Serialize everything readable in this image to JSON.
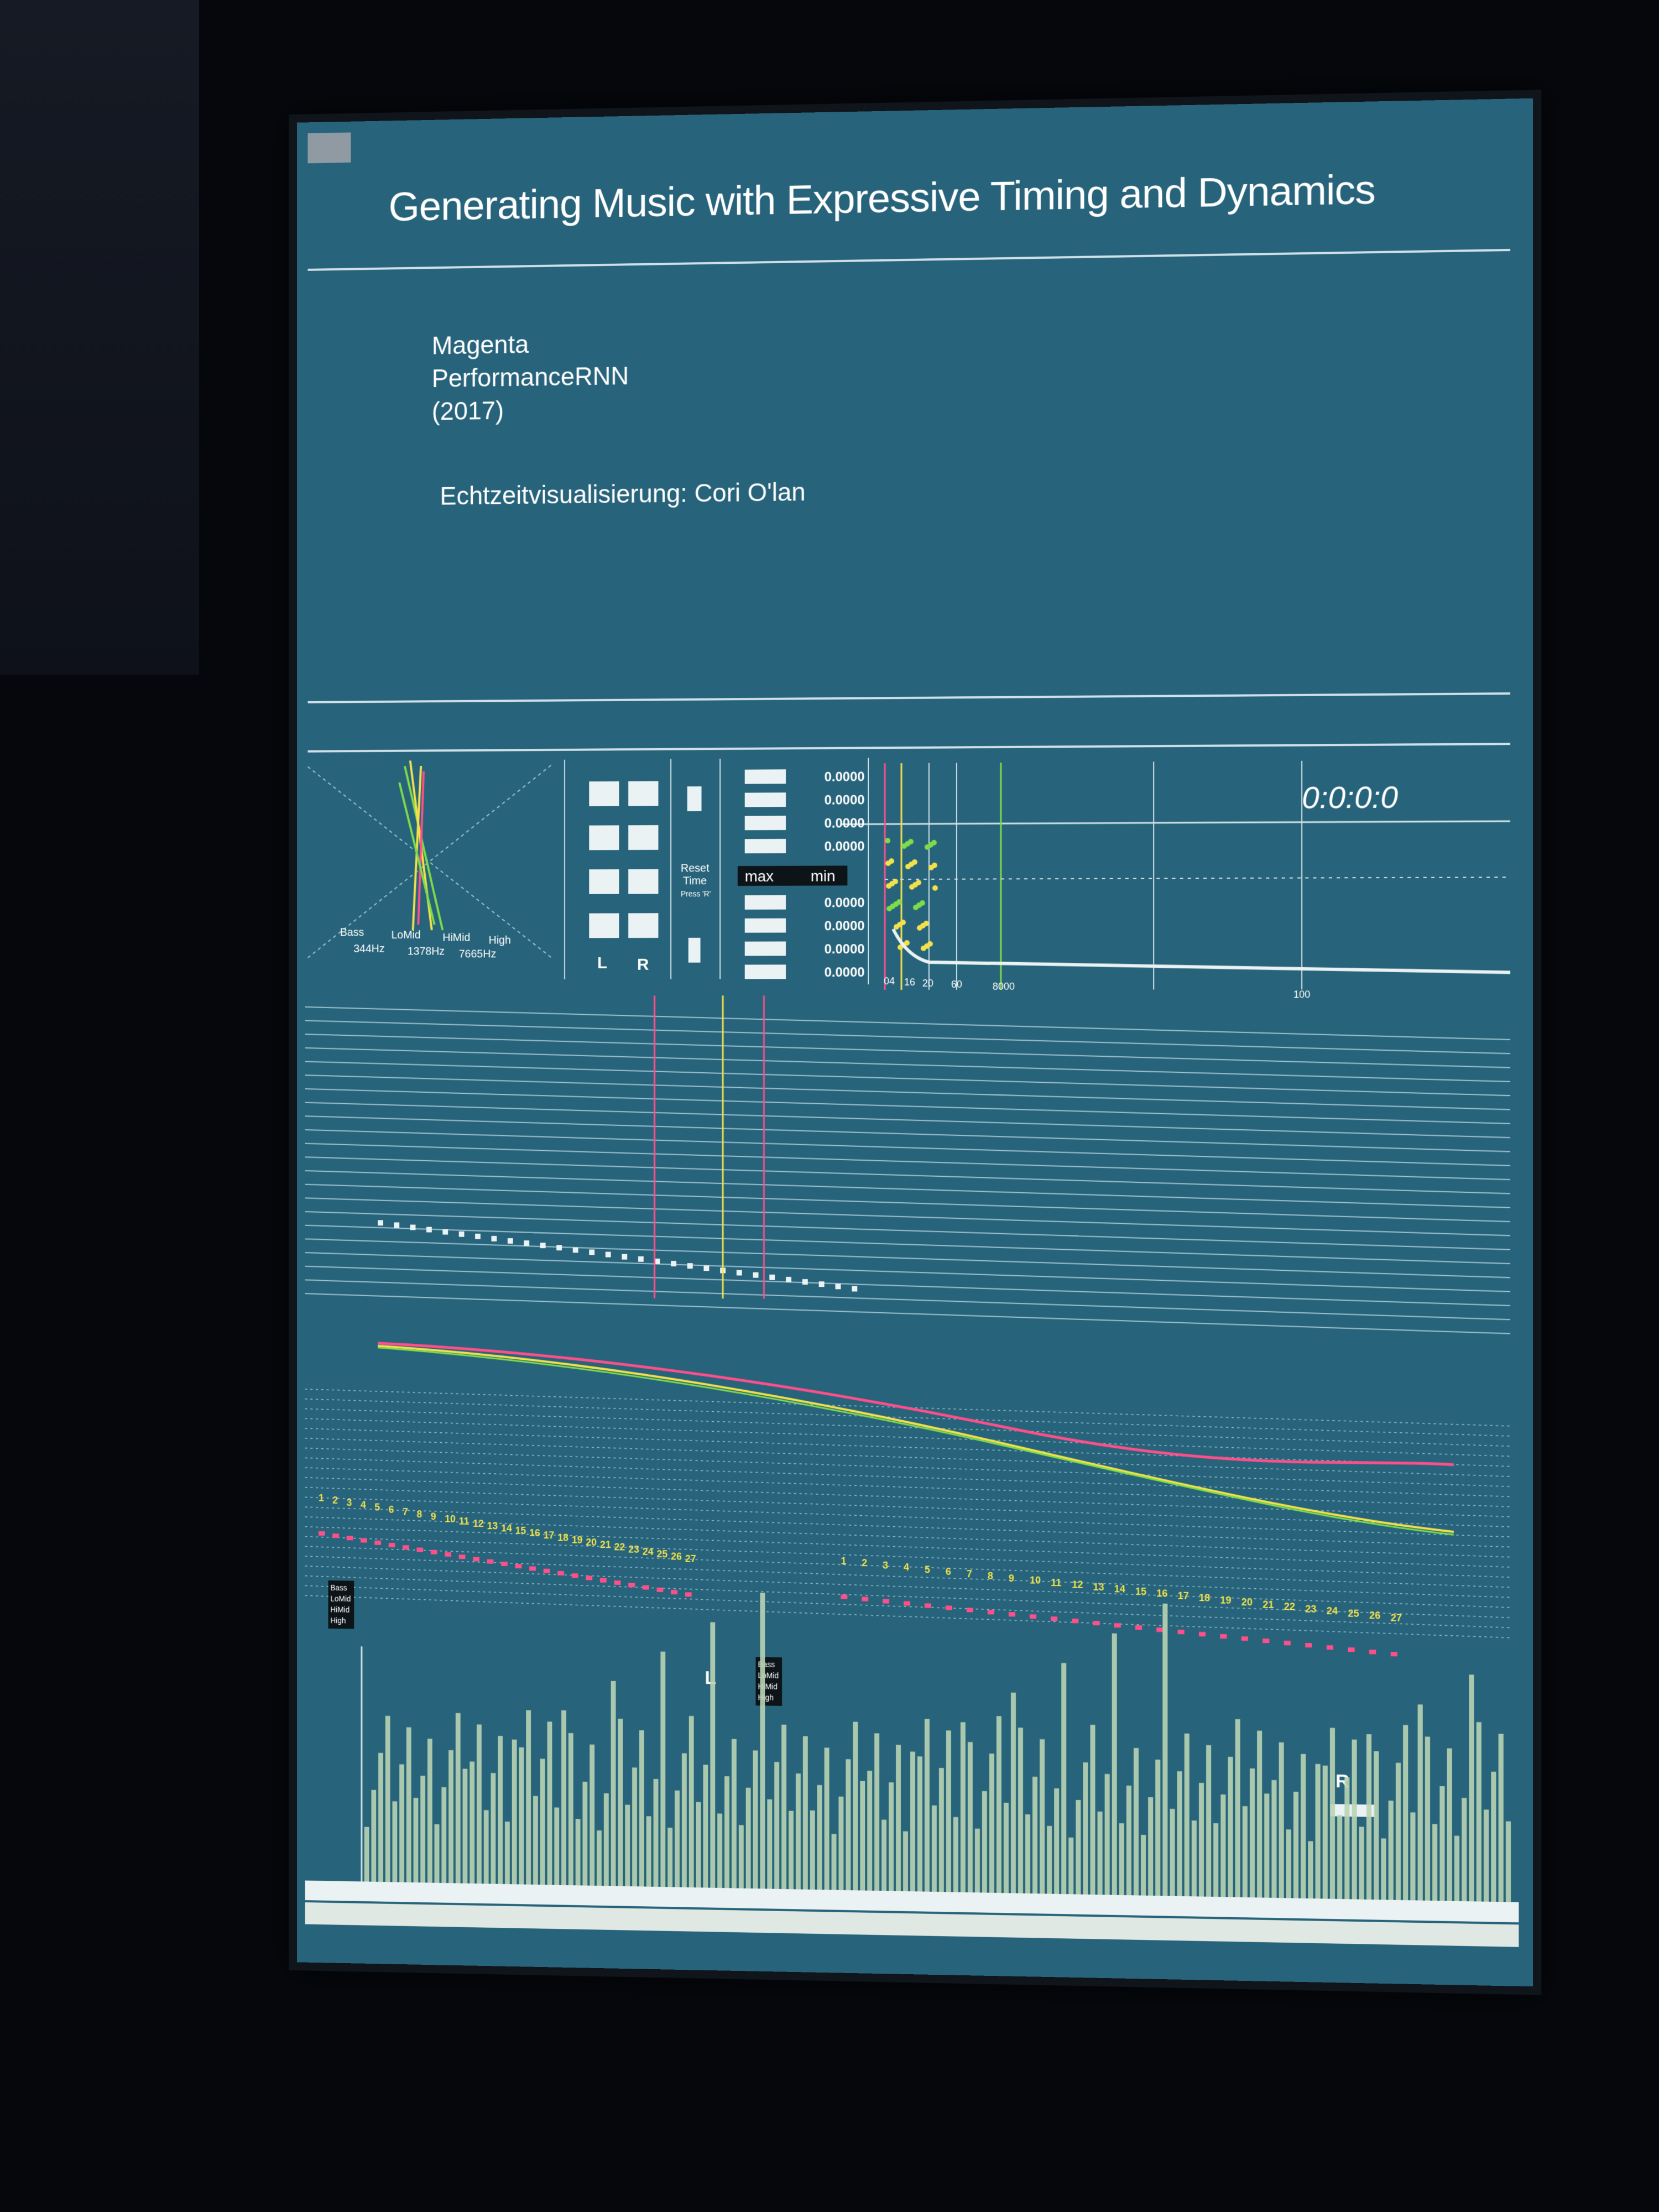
{
  "presentation": {
    "title": "Generating Music with Expressive Timing and Dynamics",
    "credits": [
      "Magenta",
      "PerformanceRNN",
      "(2017)"
    ],
    "visualization_credit": "Echtzeitvisualisierung: Cori O'lan"
  },
  "visualizer": {
    "timecode": "0:0:0:0",
    "bands": [
      {
        "name": "Bass",
        "freq": "344Hz",
        "color": "#ff4f8a"
      },
      {
        "name": "LoMid",
        "freq": "1378Hz",
        "color": "#f2e14b"
      },
      {
        "name": "HiMid",
        "freq": "7665Hz",
        "color": "#f2e14b"
      },
      {
        "name": "High",
        "freq": "",
        "color": "#7ddc4a"
      }
    ],
    "channels": {
      "left": "L",
      "right": "R"
    },
    "reset_time": {
      "label_1": "Reset",
      "label_2": "Time",
      "hint": "Press 'R'"
    },
    "minmax": {
      "max_label": "max",
      "min_label": "min"
    },
    "top_values": [
      "0.0000",
      "0.0000",
      "0.0000",
      "0.0000"
    ],
    "bottom_values": [
      "0.0000",
      "0.0000",
      "0.0000",
      "0.0000"
    ],
    "spectrum_ticks": [
      "04",
      "16",
      "20",
      "60",
      "8000",
      "100"
    ],
    "beat_labels": [
      "1",
      "2",
      "3",
      "4",
      "5",
      "6",
      "7",
      "8",
      "9",
      "10",
      "11",
      "12",
      "13",
      "14",
      "15",
      "16",
      "17",
      "18",
      "19",
      "20",
      "21",
      "22",
      "23",
      "24",
      "25",
      "26",
      "27"
    ],
    "legend": [
      "Bass",
      "LoMid",
      "HiMid",
      "High"
    ],
    "marker_left": "L",
    "marker_right": "R"
  },
  "colors": {
    "screen_bg": "#27637a",
    "bass": "#ff4f8a",
    "mid": "#f2e14b",
    "high": "#7ddc4a",
    "waveform": "#b9d3b2"
  }
}
